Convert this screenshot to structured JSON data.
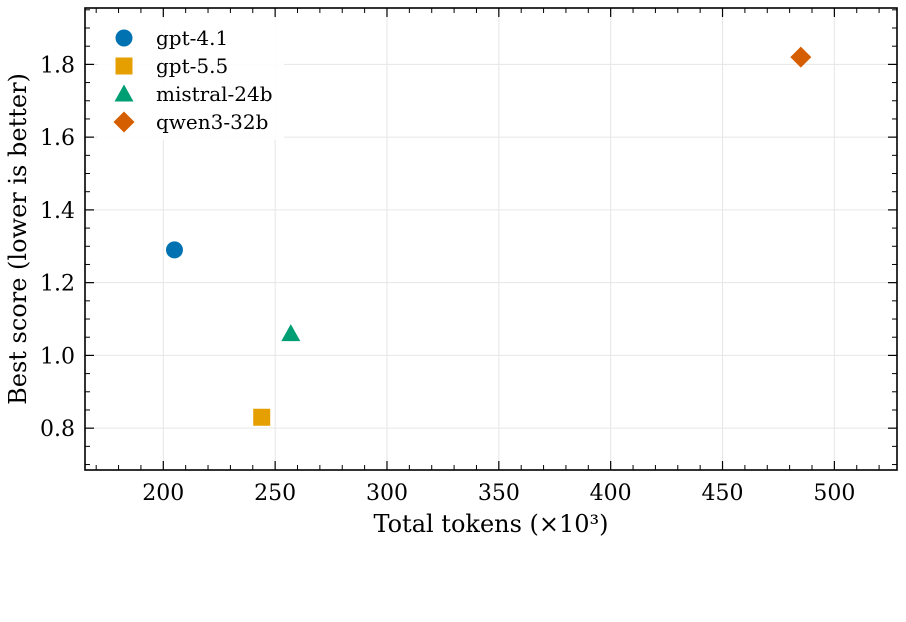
{
  "chart_data": {
    "type": "scatter",
    "xlabel": "Total tokens (×10³)",
    "ylabel": "Best score (lower is better)",
    "xlim": [
      165,
      528
    ],
    "ylim": [
      0.685,
      1.955
    ],
    "xticks": [
      200,
      250,
      300,
      350,
      400,
      450,
      500
    ],
    "yticks": [
      0.8,
      1.0,
      1.2,
      1.4,
      1.6,
      1.8
    ],
    "grid": true,
    "legend_position": "top-left",
    "series": [
      {
        "name": "gpt-4.1",
        "marker": "circle",
        "color": "#0072b2",
        "x": [
          205
        ],
        "y": [
          1.29
        ]
      },
      {
        "name": "gpt-5.5",
        "marker": "square",
        "color": "#e69f00",
        "x": [
          244
        ],
        "y": [
          0.83
        ]
      },
      {
        "name": "mistral-24b",
        "marker": "triangle",
        "color": "#009e73",
        "x": [
          257
        ],
        "y": [
          1.06
        ]
      },
      {
        "name": "qwen3-32b",
        "marker": "diamond",
        "color": "#d55e00",
        "x": [
          485
        ],
        "y": [
          1.82
        ]
      }
    ]
  }
}
